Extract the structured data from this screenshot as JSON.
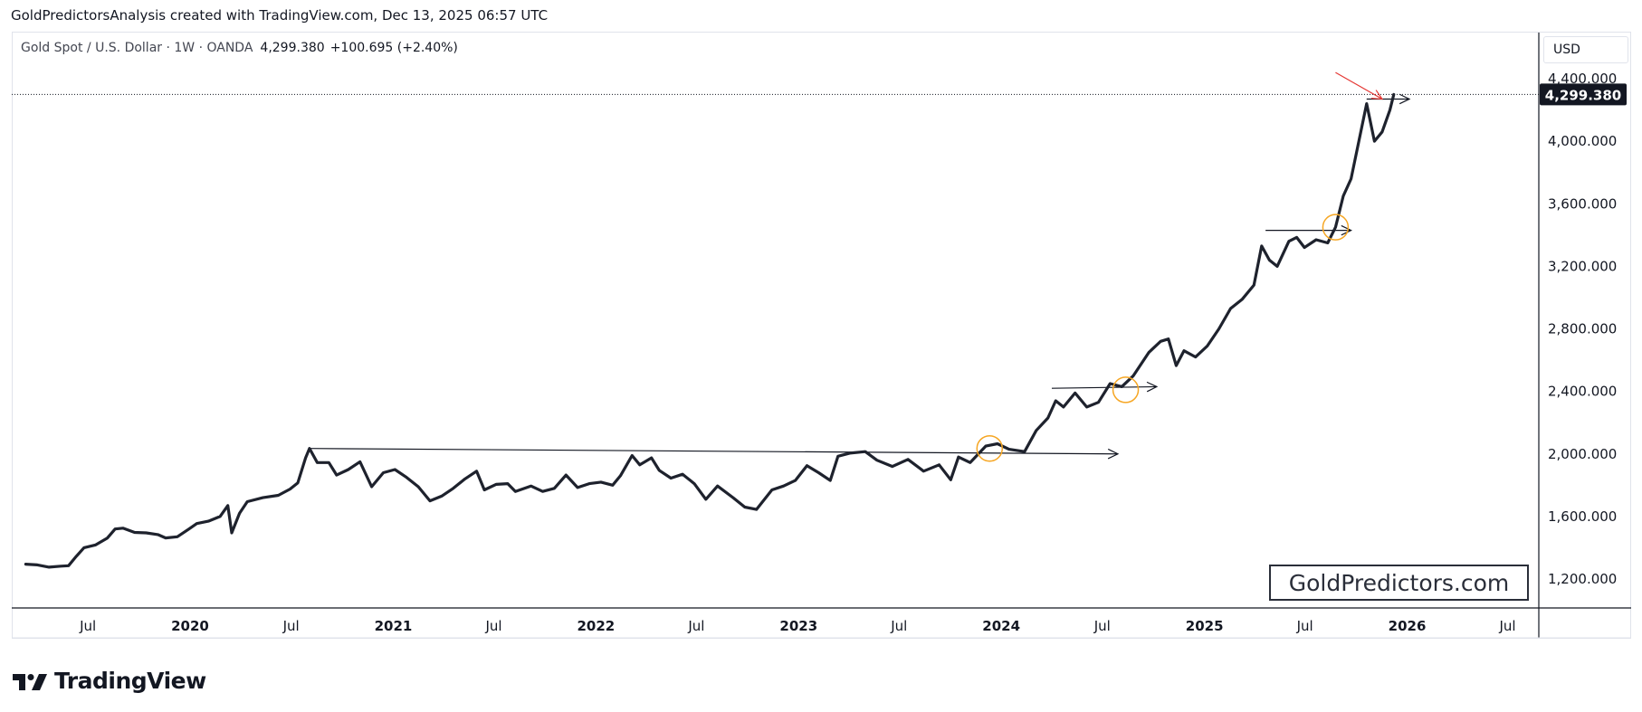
{
  "header": {
    "caption": "GoldPredictorsAnalysis created with TradingView.com, Dec 13, 2025 06:57 UTC"
  },
  "symbol": {
    "name": "Gold Spot / U.S. Dollar · 1W · OANDA",
    "last": "4,299.380",
    "change": "+100.695 (+2.40%)"
  },
  "price_scale": {
    "currency": "USD",
    "last_label": "4,299.380",
    "ticks": [
      "1,200.000",
      "1,600.000",
      "2,000.000",
      "2,400.000",
      "2,800.000",
      "3,200.000",
      "3,600.000",
      "4,000.000",
      "4,400.000"
    ]
  },
  "watermark": {
    "text": "GoldPredictors.com"
  },
  "footer": {
    "brand": "TradingView"
  },
  "colors": {
    "line": "#1e222d",
    "arrow": "#131722",
    "circle": "#f6a623",
    "red_arrow": "#e53935",
    "last_badge": "#131722"
  },
  "chart_data": {
    "type": "line",
    "title": "",
    "xlabel": "",
    "ylabel": "",
    "ylim": [
      1070,
      4440
    ],
    "x_ticks": [
      {
        "label": "Jul",
        "date": "2019-07-01",
        "bold": false
      },
      {
        "label": "2020",
        "date": "2020-01-01",
        "bold": true
      },
      {
        "label": "Jul",
        "date": "2020-07-01",
        "bold": false
      },
      {
        "label": "2021",
        "date": "2021-01-01",
        "bold": true
      },
      {
        "label": "Jul",
        "date": "2021-07-01",
        "bold": false
      },
      {
        "label": "2022",
        "date": "2022-01-01",
        "bold": true
      },
      {
        "label": "Jul",
        "date": "2022-07-01",
        "bold": false
      },
      {
        "label": "2023",
        "date": "2023-01-01",
        "bold": true
      },
      {
        "label": "Jul",
        "date": "2023-07-01",
        "bold": false
      },
      {
        "label": "2024",
        "date": "2024-01-01",
        "bold": true
      },
      {
        "label": "Jul",
        "date": "2024-07-01",
        "bold": false
      },
      {
        "label": "2025",
        "date": "2025-01-01",
        "bold": true
      },
      {
        "label": "Jul",
        "date": "2025-07-01",
        "bold": false
      },
      {
        "label": "2026",
        "date": "2026-01-01",
        "bold": true
      },
      {
        "label": "Jul",
        "date": "2026-07-01",
        "bold": false
      }
    ],
    "series": [
      {
        "points": [
          [
            "2019-03-11",
            1295
          ],
          [
            "2019-04-01",
            1290
          ],
          [
            "2019-04-22",
            1276
          ],
          [
            "2019-05-13",
            1282
          ],
          [
            "2019-05-27",
            1285
          ],
          [
            "2019-06-10",
            1345
          ],
          [
            "2019-06-24",
            1400
          ],
          [
            "2019-07-15",
            1418
          ],
          [
            "2019-08-05",
            1462
          ],
          [
            "2019-08-19",
            1520
          ],
          [
            "2019-09-02",
            1525
          ],
          [
            "2019-09-23",
            1498
          ],
          [
            "2019-10-14",
            1495
          ],
          [
            "2019-11-04",
            1484
          ],
          [
            "2019-11-18",
            1463
          ],
          [
            "2019-12-09",
            1470
          ],
          [
            "2019-12-30",
            1520
          ],
          [
            "2020-01-13",
            1555
          ],
          [
            "2020-02-03",
            1570
          ],
          [
            "2020-02-24",
            1600
          ],
          [
            "2020-03-09",
            1670
          ],
          [
            "2020-03-16",
            1495
          ],
          [
            "2020-03-30",
            1620
          ],
          [
            "2020-04-13",
            1695
          ],
          [
            "2020-05-11",
            1720
          ],
          [
            "2020-06-08",
            1735
          ],
          [
            "2020-06-29",
            1775
          ],
          [
            "2020-07-13",
            1815
          ],
          [
            "2020-07-27",
            1975
          ],
          [
            "2020-08-03",
            2035
          ],
          [
            "2020-08-17",
            1945
          ],
          [
            "2020-09-07",
            1945
          ],
          [
            "2020-09-21",
            1865
          ],
          [
            "2020-10-12",
            1900
          ],
          [
            "2020-11-02",
            1950
          ],
          [
            "2020-11-23",
            1790
          ],
          [
            "2020-12-14",
            1880
          ],
          [
            "2021-01-04",
            1900
          ],
          [
            "2021-01-25",
            1850
          ],
          [
            "2021-02-15",
            1790
          ],
          [
            "2021-03-08",
            1700
          ],
          [
            "2021-03-29",
            1730
          ],
          [
            "2021-04-19",
            1780
          ],
          [
            "2021-05-10",
            1840
          ],
          [
            "2021-05-31",
            1890
          ],
          [
            "2021-06-14",
            1770
          ],
          [
            "2021-07-05",
            1805
          ],
          [
            "2021-07-26",
            1810
          ],
          [
            "2021-08-09",
            1760
          ],
          [
            "2021-09-06",
            1795
          ],
          [
            "2021-09-27",
            1760
          ],
          [
            "2021-10-18",
            1780
          ],
          [
            "2021-11-08",
            1865
          ],
          [
            "2021-11-29",
            1785
          ],
          [
            "2021-12-20",
            1810
          ],
          [
            "2022-01-10",
            1820
          ],
          [
            "2022-01-31",
            1800
          ],
          [
            "2022-02-14",
            1860
          ],
          [
            "2022-03-07",
            1990
          ],
          [
            "2022-03-21",
            1930
          ],
          [
            "2022-04-11",
            1975
          ],
          [
            "2022-04-25",
            1895
          ],
          [
            "2022-05-16",
            1845
          ],
          [
            "2022-06-06",
            1870
          ],
          [
            "2022-06-27",
            1810
          ],
          [
            "2022-07-18",
            1710
          ],
          [
            "2022-08-08",
            1795
          ],
          [
            "2022-09-05",
            1720
          ],
          [
            "2022-09-26",
            1660
          ],
          [
            "2022-10-17",
            1645
          ],
          [
            "2022-11-14",
            1770
          ],
          [
            "2022-12-05",
            1795
          ],
          [
            "2022-12-26",
            1830
          ],
          [
            "2023-01-16",
            1925
          ],
          [
            "2023-02-06",
            1880
          ],
          [
            "2023-02-27",
            1830
          ],
          [
            "2023-03-13",
            1985
          ],
          [
            "2023-04-03",
            2005
          ],
          [
            "2023-05-01",
            2015
          ],
          [
            "2023-05-22",
            1960
          ],
          [
            "2023-06-19",
            1920
          ],
          [
            "2023-07-17",
            1965
          ],
          [
            "2023-08-14",
            1890
          ],
          [
            "2023-09-11",
            1930
          ],
          [
            "2023-10-02",
            1835
          ],
          [
            "2023-10-16",
            1980
          ],
          [
            "2023-11-06",
            1945
          ],
          [
            "2023-12-04",
            2050
          ],
          [
            "2023-12-25",
            2065
          ],
          [
            "2024-01-15",
            2030
          ],
          [
            "2024-02-12",
            2015
          ],
          [
            "2024-03-04",
            2150
          ],
          [
            "2024-03-25",
            2230
          ],
          [
            "2024-04-08",
            2340
          ],
          [
            "2024-04-22",
            2300
          ],
          [
            "2024-05-13",
            2390
          ],
          [
            "2024-06-03",
            2300
          ],
          [
            "2024-06-24",
            2330
          ],
          [
            "2024-07-15",
            2450
          ],
          [
            "2024-08-05",
            2430
          ],
          [
            "2024-08-26",
            2500
          ],
          [
            "2024-09-23",
            2650
          ],
          [
            "2024-10-14",
            2720
          ],
          [
            "2024-10-28",
            2735
          ],
          [
            "2024-11-11",
            2565
          ],
          [
            "2024-11-25",
            2660
          ],
          [
            "2024-12-16",
            2620
          ],
          [
            "2025-01-06",
            2690
          ],
          [
            "2025-01-27",
            2800
          ],
          [
            "2025-02-17",
            2930
          ],
          [
            "2025-03-10",
            2990
          ],
          [
            "2025-03-31",
            3080
          ],
          [
            "2025-04-14",
            3330
          ],
          [
            "2025-04-28",
            3240
          ],
          [
            "2025-05-12",
            3200
          ],
          [
            "2025-06-02",
            3360
          ],
          [
            "2025-06-16",
            3385
          ],
          [
            "2025-06-30",
            3320
          ],
          [
            "2025-07-21",
            3370
          ],
          [
            "2025-08-11",
            3350
          ],
          [
            "2025-08-25",
            3450
          ],
          [
            "2025-09-08",
            3650
          ],
          [
            "2025-09-22",
            3760
          ],
          [
            "2025-10-06",
            4000
          ],
          [
            "2025-10-20",
            4240
          ],
          [
            "2025-11-03",
            4000
          ],
          [
            "2025-11-17",
            4060
          ],
          [
            "2025-12-01",
            4200
          ],
          [
            "2025-12-08",
            4299.38
          ]
        ]
      }
    ],
    "trendlines": [
      {
        "from": [
          "2020-08-03",
          2035
        ],
        "to": [
          "2024-07-29",
          2000
        ]
      },
      {
        "from": [
          "2024-04-01",
          2420
        ],
        "to": [
          "2024-10-07",
          2430
        ]
      },
      {
        "from": [
          "2025-04-21",
          3430
        ],
        "to": [
          "2025-09-22",
          3430
        ]
      },
      {
        "from": [
          "2025-10-20",
          4270
        ],
        "to": [
          "2026-01-05",
          4270
        ]
      }
    ],
    "circled_points": [
      [
        "2023-12-11",
        2035
      ],
      [
        "2024-08-12",
        2410
      ],
      [
        "2025-08-25",
        3450
      ]
    ],
    "red_arrow": {
      "from": [
        "2025-08-25",
        4440
      ],
      "to": [
        "2025-11-17",
        4270
      ]
    }
  }
}
